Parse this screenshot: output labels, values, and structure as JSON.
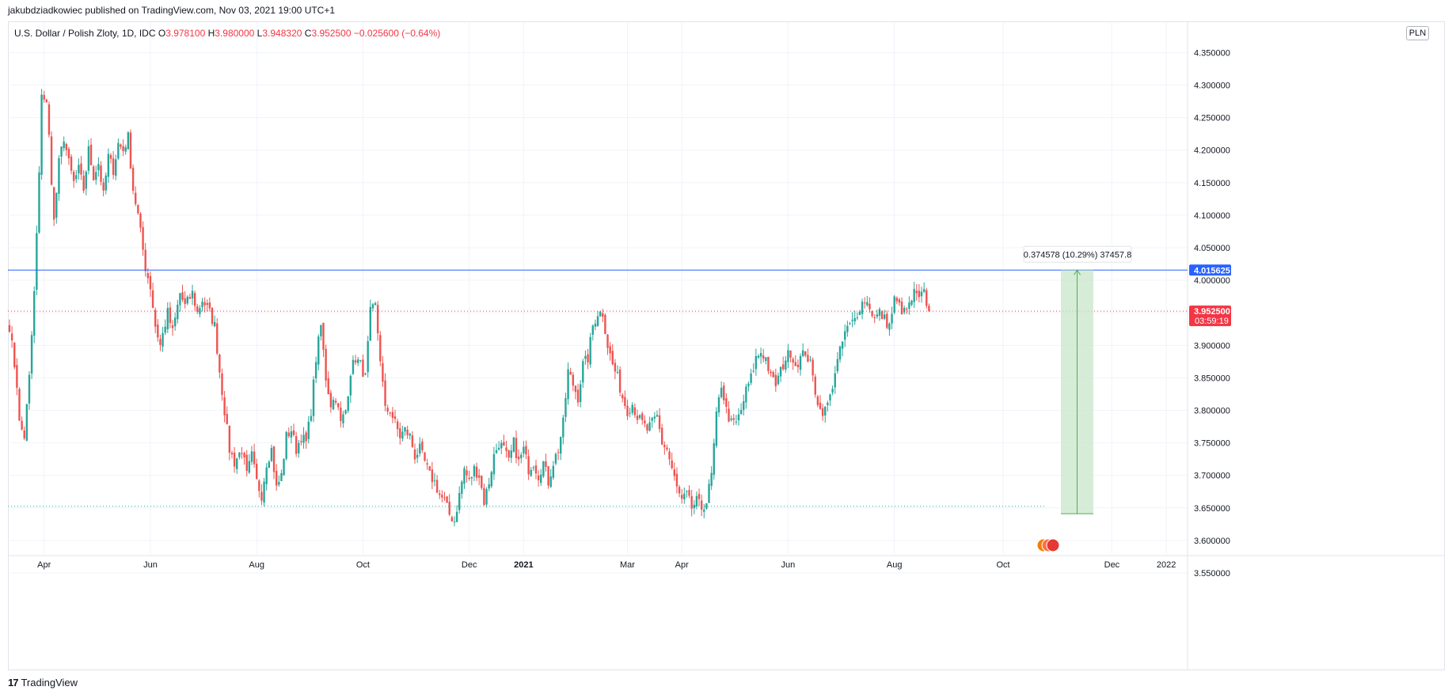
{
  "header": {
    "published_line": "jakubdziadkowiec published on TradingView.com, Nov 03, 2021 19:00 UTC+1",
    "symbol_line": "U.S. Dollar / Polish Zloty, 1D, IDC",
    "o_label": "O",
    "o_value": "3.978100",
    "h_label": "H",
    "h_value": "3.980000",
    "l_label": "L",
    "l_value": "3.948320",
    "c_label": "C",
    "c_value": "3.952500",
    "change": "−0.025600 (−0.64%)",
    "currency": "PLN"
  },
  "footer": {
    "logo": "17",
    "brand": "TradingView"
  },
  "colors": {
    "up": "#26a69a",
    "down": "#ef5350",
    "hline": "#2962ff",
    "measure_fill": "#c8e6c9",
    "measure_line": "#4caf50"
  },
  "chart_data": {
    "type": "candlestick",
    "symbol": "USDPLN",
    "ylim": [
      3.55,
      4.37
    ],
    "y_ticks": [
      "4.350000",
      "4.300000",
      "4.250000",
      "4.200000",
      "4.150000",
      "4.100000",
      "4.050000",
      "4.000000",
      "3.950000",
      "3.900000",
      "3.850000",
      "3.800000",
      "3.750000",
      "3.700000",
      "3.650000",
      "3.600000",
      "3.550000"
    ],
    "x_ticks": [
      {
        "label": "Apr",
        "i": 14
      },
      {
        "label": "Jun",
        "i": 57
      },
      {
        "label": "Aug",
        "i": 100
      },
      {
        "label": "Oct",
        "i": 143
      },
      {
        "label": "Dec",
        "i": 186
      },
      {
        "label": "2021",
        "i": 208,
        "bold": true
      },
      {
        "label": "Mar",
        "i": 250
      },
      {
        "label": "Apr",
        "i": 272
      },
      {
        "label": "Jun",
        "i": 315
      },
      {
        "label": "Aug",
        "i": 358
      },
      {
        "label": "Oct",
        "i": 402
      },
      {
        "label": "Dec",
        "i": 446
      },
      {
        "label": "2022",
        "i": 468
      }
    ],
    "anchors": [
      [
        0,
        3.93
      ],
      [
        3,
        3.84
      ],
      [
        4,
        3.78
      ],
      [
        6,
        3.76
      ],
      [
        8,
        3.85
      ],
      [
        10,
        3.98
      ],
      [
        12,
        4.16
      ],
      [
        13,
        4.29
      ],
      [
        15,
        4.27
      ],
      [
        16,
        4.22
      ],
      [
        18,
        4.09
      ],
      [
        20,
        4.18
      ],
      [
        22,
        4.22
      ],
      [
        24,
        4.18
      ],
      [
        26,
        4.15
      ],
      [
        28,
        4.17
      ],
      [
        30,
        4.14
      ],
      [
        32,
        4.2
      ],
      [
        34,
        4.16
      ],
      [
        36,
        4.18
      ],
      [
        38,
        4.13
      ],
      [
        40,
        4.19
      ],
      [
        42,
        4.17
      ],
      [
        44,
        4.21
      ],
      [
        46,
        4.2
      ],
      [
        48,
        4.22
      ],
      [
        50,
        4.14
      ],
      [
        52,
        4.1
      ],
      [
        55,
        4.02
      ],
      [
        57,
        3.99
      ],
      [
        59,
        3.93
      ],
      [
        61,
        3.9
      ],
      [
        64,
        3.95
      ],
      [
        66,
        3.92
      ],
      [
        69,
        3.98
      ],
      [
        71,
        3.96
      ],
      [
        74,
        3.98
      ],
      [
        76,
        3.95
      ],
      [
        78,
        3.97
      ],
      [
        81,
        3.95
      ],
      [
        83,
        3.93
      ],
      [
        85,
        3.86
      ],
      [
        87,
        3.8
      ],
      [
        89,
        3.74
      ],
      [
        91,
        3.72
      ],
      [
        94,
        3.74
      ],
      [
        96,
        3.7
      ],
      [
        98,
        3.73
      ],
      [
        100,
        3.69
      ],
      [
        102,
        3.67
      ],
      [
        104,
        3.72
      ],
      [
        106,
        3.74
      ],
      [
        108,
        3.68
      ],
      [
        110,
        3.7
      ],
      [
        112,
        3.76
      ],
      [
        114,
        3.77
      ],
      [
        116,
        3.74
      ],
      [
        118,
        3.76
      ],
      [
        120,
        3.75
      ],
      [
        122,
        3.8
      ],
      [
        124,
        3.88
      ],
      [
        126,
        3.93
      ],
      [
        128,
        3.85
      ],
      [
        130,
        3.81
      ],
      [
        132,
        3.82
      ],
      [
        134,
        3.78
      ],
      [
        136,
        3.8
      ],
      [
        138,
        3.86
      ],
      [
        140,
        3.88
      ],
      [
        142,
        3.87
      ],
      [
        144,
        3.85
      ],
      [
        146,
        3.95
      ],
      [
        148,
        3.96
      ],
      [
        150,
        3.88
      ],
      [
        152,
        3.8
      ],
      [
        154,
        3.8
      ],
      [
        156,
        3.78
      ],
      [
        158,
        3.76
      ],
      [
        160,
        3.77
      ],
      [
        162,
        3.76
      ],
      [
        164,
        3.73
      ],
      [
        166,
        3.74
      ],
      [
        168,
        3.72
      ],
      [
        170,
        3.7
      ],
      [
        172,
        3.69
      ],
      [
        174,
        3.67
      ],
      [
        176,
        3.66
      ],
      [
        178,
        3.64
      ],
      [
        180,
        3.63
      ],
      [
        182,
        3.67
      ],
      [
        184,
        3.71
      ],
      [
        186,
        3.69
      ],
      [
        188,
        3.71
      ],
      [
        190,
        3.7
      ],
      [
        192,
        3.66
      ],
      [
        194,
        3.69
      ],
      [
        196,
        3.73
      ],
      [
        198,
        3.75
      ],
      [
        200,
        3.74
      ],
      [
        202,
        3.72
      ],
      [
        204,
        3.75
      ],
      [
        206,
        3.72
      ],
      [
        208,
        3.74
      ],
      [
        210,
        3.71
      ],
      [
        212,
        3.72
      ],
      [
        214,
        3.7
      ],
      [
        216,
        3.72
      ],
      [
        218,
        3.69
      ],
      [
        220,
        3.72
      ],
      [
        222,
        3.74
      ],
      [
        224,
        3.78
      ],
      [
        226,
        3.86
      ],
      [
        228,
        3.84
      ],
      [
        230,
        3.82
      ],
      [
        232,
        3.87
      ],
      [
        234,
        3.88
      ],
      [
        236,
        3.93
      ],
      [
        238,
        3.95
      ],
      [
        240,
        3.95
      ],
      [
        242,
        3.9
      ],
      [
        244,
        3.87
      ],
      [
        246,
        3.85
      ],
      [
        248,
        3.82
      ],
      [
        250,
        3.8
      ],
      [
        252,
        3.81
      ],
      [
        254,
        3.79
      ],
      [
        256,
        3.78
      ],
      [
        258,
        3.77
      ],
      [
        260,
        3.78
      ],
      [
        262,
        3.79
      ],
      [
        264,
        3.75
      ],
      [
        266,
        3.74
      ],
      [
        268,
        3.71
      ],
      [
        270,
        3.68
      ],
      [
        272,
        3.66
      ],
      [
        274,
        3.67
      ],
      [
        276,
        3.65
      ],
      [
        278,
        3.66
      ],
      [
        280,
        3.65
      ],
      [
        282,
        3.66
      ],
      [
        284,
        3.7
      ],
      [
        286,
        3.79
      ],
      [
        288,
        3.84
      ],
      [
        290,
        3.8
      ],
      [
        292,
        3.78
      ],
      [
        294,
        3.78
      ],
      [
        296,
        3.8
      ],
      [
        298,
        3.83
      ],
      [
        300,
        3.85
      ],
      [
        302,
        3.88
      ],
      [
        304,
        3.89
      ],
      [
        306,
        3.88
      ],
      [
        308,
        3.85
      ],
      [
        310,
        3.84
      ],
      [
        312,
        3.86
      ],
      [
        314,
        3.88
      ],
      [
        316,
        3.89
      ],
      [
        318,
        3.87
      ],
      [
        320,
        3.88
      ],
      [
        322,
        3.89
      ],
      [
        324,
        3.87
      ],
      [
        326,
        3.83
      ],
      [
        328,
        3.8
      ],
      [
        330,
        3.8
      ],
      [
        332,
        3.82
      ],
      [
        334,
        3.86
      ],
      [
        336,
        3.89
      ],
      [
        338,
        3.92
      ],
      [
        340,
        3.93
      ],
      [
        342,
        3.94
      ],
      [
        344,
        3.96
      ],
      [
        346,
        3.97
      ],
      [
        348,
        3.96
      ],
      [
        350,
        3.94
      ],
      [
        352,
        3.95
      ],
      [
        354,
        3.94
      ],
      [
        356,
        3.93
      ],
      [
        358,
        3.97
      ],
      [
        360,
        3.96
      ],
      [
        362,
        3.95
      ],
      [
        364,
        3.96
      ],
      [
        366,
        3.98
      ],
      [
        368,
        3.97
      ],
      [
        370,
        3.98
      ],
      [
        372,
        3.9525
      ]
    ],
    "price_markers": [
      {
        "value": 4.015625,
        "label": "4.015625",
        "color": "#2962ff"
      },
      {
        "value": 3.9525,
        "label": "3.952500",
        "sublabel": "03:59:19",
        "color": "#f23645"
      }
    ],
    "horizontal_lines": [
      {
        "value": 4.015625,
        "style": "solid",
        "color": "#2962ff"
      },
      {
        "value": 3.9525,
        "style": "dotted",
        "color": "#f23645"
      },
      {
        "value": 3.6525,
        "style": "dotted",
        "color": "#26a69a"
      }
    ],
    "measure": {
      "from": 3.641047,
      "to": 4.015625,
      "label": "0.374578 (10.29%) 37457.8"
    }
  }
}
